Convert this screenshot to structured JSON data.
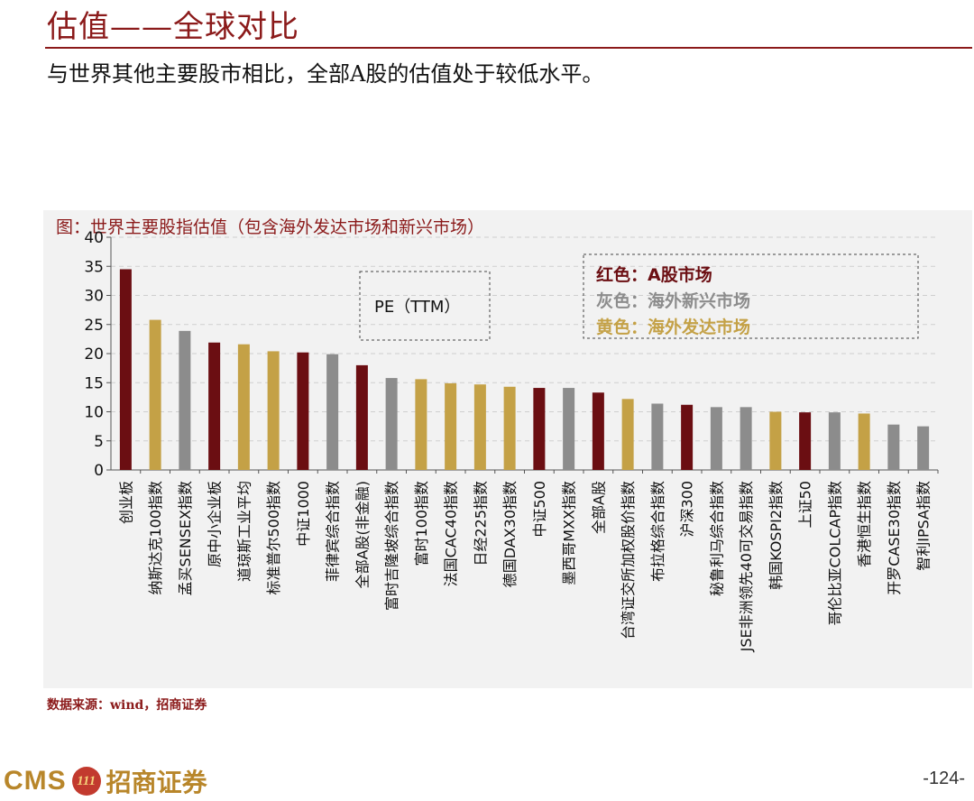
{
  "header": {
    "title": "估值——全球对比",
    "subtitle": "与世界其他主要股市相比，全部A股的估值处于较低水平。"
  },
  "footer": {
    "source": "数据来源：wind，招商证券",
    "logo_cms": "CMS",
    "logo_badge": "111",
    "logo_cn": "招商证券",
    "page_number": "-124-"
  },
  "colors": {
    "red": "#6b0e12",
    "gray": "#8c8c8c",
    "yellow": "#c4a146",
    "brand": "#8b1a1a"
  },
  "chart_data": {
    "type": "bar",
    "title": "图：世界主要股指估值（包含海外发达市场和新兴市场）",
    "annotation": "PE（TTM）",
    "ylim": [
      0,
      40
    ],
    "yticks": [
      0,
      5,
      10,
      15,
      20,
      25,
      30,
      35,
      40
    ],
    "legend": [
      {
        "label": "红色：A股市场",
        "group": "red"
      },
      {
        "label": "灰色：海外新兴市场",
        "group": "gray"
      },
      {
        "label": "黄色：海外发达市场",
        "group": "yellow"
      }
    ],
    "categories": [
      "创业板",
      "纳斯达克100指数",
      "孟买SENSEX指数",
      "原中小企业板",
      "道琼斯工业平均",
      "标准普尔500指数",
      "中证1000",
      "菲律宾综合指数",
      "全部A股(非金融)",
      "富时吉隆坡综合指数",
      "富时100指数",
      "法国CAC40指数",
      "日经225指数",
      "德国DAX30指数",
      "中证500",
      "墨西哥MXX指数",
      "全部A股",
      "台湾证交所加权股价指数",
      "布拉格综合指数",
      "沪深300",
      "秘鲁利马综合指数",
      "JSE非洲领先40可交易指数",
      "韩国KOSPI2指数",
      "上证50",
      "哥伦比亚COLCAP指数",
      "香港恒生指数",
      "开罗CASE30指数",
      "智利IPSA指数"
    ],
    "values": [
      34.5,
      25.8,
      23.9,
      21.9,
      21.6,
      20.4,
      20.2,
      19.9,
      18.0,
      15.8,
      15.6,
      14.9,
      14.7,
      14.3,
      14.1,
      14.1,
      13.3,
      12.2,
      11.4,
      11.2,
      10.8,
      10.8,
      10.0,
      9.9,
      9.9,
      9.7,
      7.8,
      7.5
    ],
    "groups": [
      "red",
      "yellow",
      "gray",
      "red",
      "yellow",
      "yellow",
      "red",
      "gray",
      "red",
      "gray",
      "yellow",
      "yellow",
      "yellow",
      "yellow",
      "red",
      "gray",
      "red",
      "yellow",
      "gray",
      "red",
      "gray",
      "gray",
      "yellow",
      "red",
      "gray",
      "yellow",
      "gray",
      "gray"
    ]
  }
}
